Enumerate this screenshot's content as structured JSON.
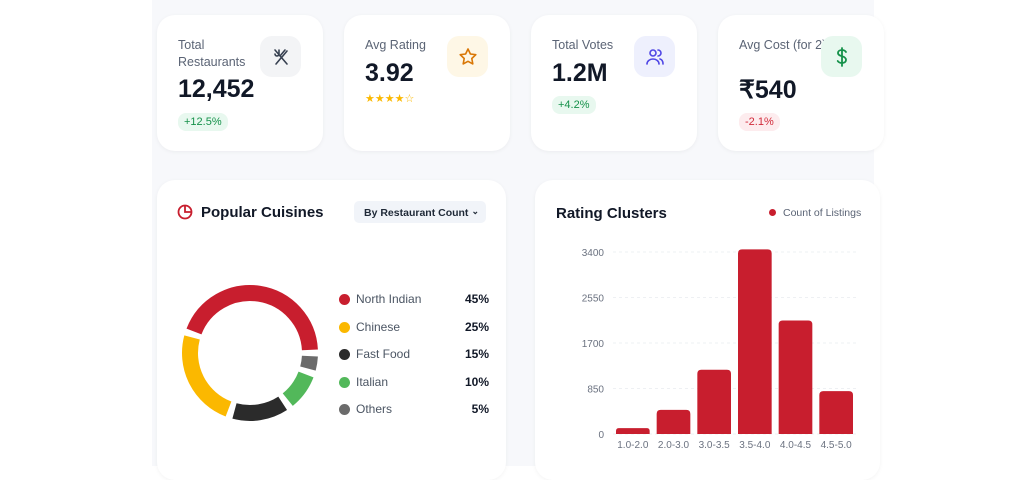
{
  "kpis": [
    {
      "label": "Total Restaurants",
      "value": "12,452",
      "change": "+12.5%",
      "trend": "up",
      "icon": "utensils-crossed-icon",
      "icon_bg": "#f3f4f6",
      "icon_color": "#374151"
    },
    {
      "label": "Avg Rating",
      "value": "3.92",
      "stars": 4,
      "stars_max": 5,
      "icon": "star-icon",
      "icon_bg": "#fef7e6",
      "icon_color": "#d97706"
    },
    {
      "label": "Total Votes",
      "value": "1.2M",
      "change": "+4.2%",
      "trend": "up",
      "icon": "users-icon",
      "icon_bg": "#eef0fd",
      "icon_color": "#4f46e5"
    },
    {
      "label": "Avg Cost (for 2)",
      "value": "₹540",
      "change": "-2.1%",
      "trend": "down",
      "icon": "dollar-icon",
      "icon_bg": "#e8f8ef",
      "icon_color": "#15914a"
    }
  ],
  "cuisines": {
    "title": "Popular Cuisines",
    "dropdown": "By Restaurant Count",
    "items": [
      {
        "name": "North Indian",
        "pct": "45%",
        "value": 45,
        "color": "#c81e2e"
      },
      {
        "name": "Chinese",
        "pct": "25%",
        "value": 25,
        "color": "#fbb800"
      },
      {
        "name": "Fast Food",
        "pct": "15%",
        "value": 15,
        "color": "#2b2b2b"
      },
      {
        "name": "Italian",
        "pct": "10%",
        "value": 10,
        "color": "#52b85a"
      },
      {
        "name": "Others",
        "pct": "5%",
        "value": 5,
        "color": "#6b6b6b"
      }
    ]
  },
  "chart_data": {
    "type": "bar",
    "title": "Rating Clusters",
    "legend": "Count of Listings",
    "legend_position": "top-right",
    "categories": [
      "1.0-2.0",
      "2.0-3.0",
      "3.0-3.5",
      "3.5-4.0",
      "4.0-4.5",
      "4.5-5.0"
    ],
    "values": [
      110,
      450,
      1200,
      3450,
      2120,
      800
    ],
    "yticks": [
      "0",
      "850",
      "1700",
      "2550",
      "3400"
    ],
    "ylim": [
      0,
      3400
    ],
    "grid": true,
    "color": "#c81e2e"
  }
}
